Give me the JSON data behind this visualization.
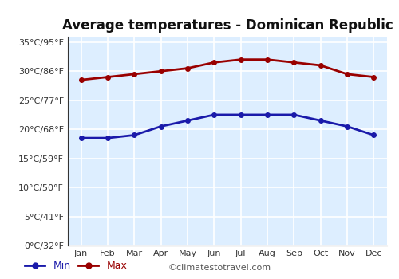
{
  "title": "Average temperatures - Dominican Republic",
  "months": [
    "Jan",
    "Feb",
    "Mar",
    "Apr",
    "May",
    "Jun",
    "Jul",
    "Aug",
    "Sep",
    "Oct",
    "Nov",
    "Dec"
  ],
  "min_temps": [
    18.5,
    18.5,
    19.0,
    20.5,
    21.5,
    22.5,
    22.5,
    22.5,
    22.5,
    21.5,
    20.5,
    19.0
  ],
  "max_temps": [
    28.5,
    29.0,
    29.5,
    30.0,
    30.5,
    31.5,
    32.0,
    32.0,
    31.5,
    31.0,
    29.5,
    29.0
  ],
  "min_color": "#1a1aaa",
  "max_color": "#990000",
  "plot_area_color": "#ddeeff",
  "fig_bg_color": "#ffffff",
  "grid_color": "#ffffff",
  "yticks_c": [
    0,
    5,
    10,
    15,
    20,
    25,
    30,
    35
  ],
  "ytick_labels": [
    "0°C/32°F",
    "5°C/41°F",
    "10°C/50°F",
    "15°C/59°F",
    "20°C/68°F",
    "25°C/77°F",
    "30°C/86°F",
    "35°C/95°F"
  ],
  "ylim": [
    0,
    36
  ],
  "watermark": "©climatestotravel.com",
  "legend_min": "Min",
  "legend_max": "Max",
  "title_fontsize": 12,
  "tick_fontsize": 8,
  "legend_fontsize": 9
}
